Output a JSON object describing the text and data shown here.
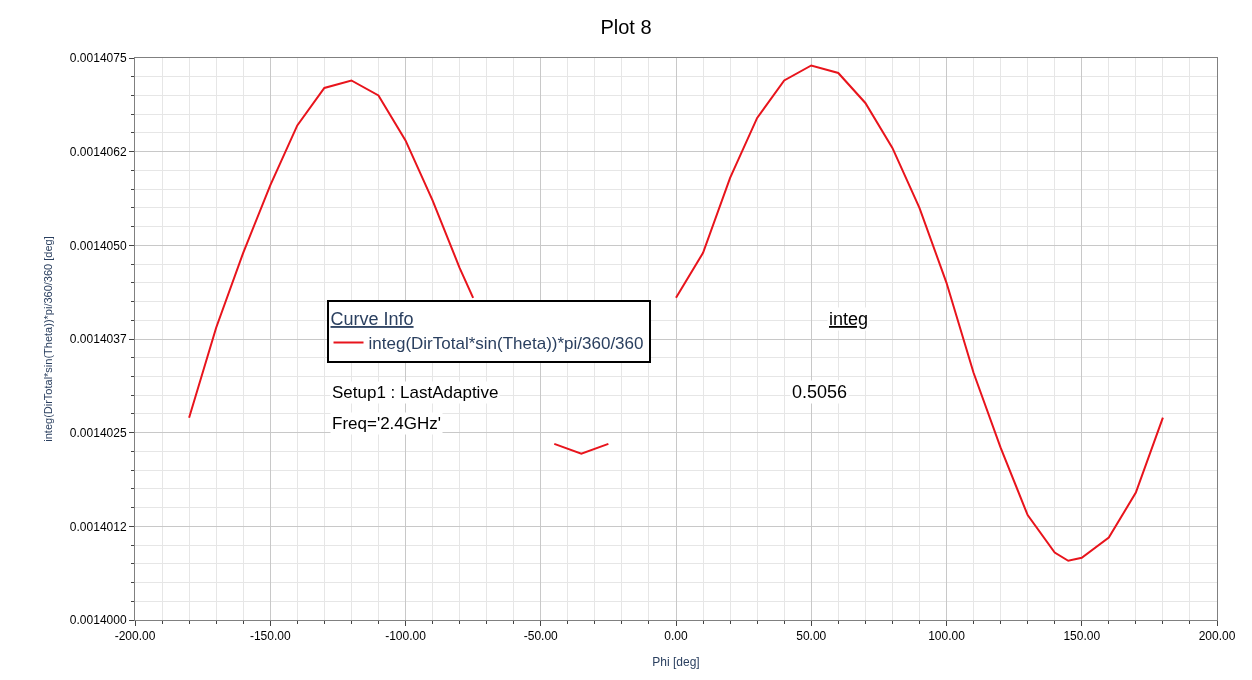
{
  "chart_data": {
    "type": "line",
    "title": "Plot 8",
    "xlabel": "Phi [deg]",
    "ylabel": "integ(DirTotal*sin(Theta))*pi/360/360 [deg]",
    "legend_title": "Curve Info",
    "x": [
      -180,
      -170,
      -160,
      -150,
      -140,
      -130,
      -120,
      -110,
      -100,
      -90,
      -80,
      -75,
      -70,
      -60,
      -50,
      -45,
      -35,
      -25,
      -20,
      -10,
      0,
      10,
      20,
      30,
      40,
      50,
      60,
      70,
      80,
      90,
      100,
      110,
      120,
      130,
      140,
      145,
      150,
      160,
      170,
      180
    ],
    "series": [
      {
        "name": "integ(DirTotal*sin(Theta))*pi/360/360",
        "color": "#e8141c",
        "values": [
          0.0014027,
          0.0014039,
          0.0014049,
          0.0014058,
          0.0014066,
          0.0014071,
          0.0014072,
          0.001407,
          0.0014064,
          0.0014056,
          0.0014047,
          0.0014043,
          null,
          null,
          null,
          0.00140235,
          0.00140222,
          0.00140235,
          null,
          null,
          0.0014043,
          0.0014049,
          0.0014059,
          0.0014067,
          0.0014072,
          0.0014074,
          0.0014073,
          0.0014069,
          0.0014063,
          0.0014055,
          0.0014045,
          0.0014033,
          0.0014023,
          0.0014014,
          0.0014009,
          0.00140079,
          0.00140083,
          0.0014011,
          0.0014017,
          0.0014027
        ]
      }
    ],
    "xlim": [
      -200,
      200
    ],
    "xticks": [
      {
        "value": -200,
        "label": "-200.00"
      },
      {
        "value": -150,
        "label": "-150.00"
      },
      {
        "value": -100,
        "label": "-100.00"
      },
      {
        "value": -50,
        "label": "-50.00"
      },
      {
        "value": 0,
        "label": "0.00"
      },
      {
        "value": 50,
        "label": "50.00"
      },
      {
        "value": 100,
        "label": "100.00"
      },
      {
        "value": 150,
        "label": "150.00"
      },
      {
        "value": 200,
        "label": "200.00"
      }
    ],
    "ylim": [
      0.0014,
      0.0014075
    ],
    "yticks": [
      {
        "value": 0.0014,
        "label": "0.0014000"
      },
      {
        "value": 0.00140125,
        "label": "0.0014012"
      },
      {
        "value": 0.0014025,
        "label": "0.0014025"
      },
      {
        "value": 0.00140375,
        "label": "0.0014037"
      },
      {
        "value": 0.001405,
        "label": "0.0014050"
      },
      {
        "value": 0.00140625,
        "label": "0.0014062"
      },
      {
        "value": 0.0014075,
        "label": "0.0014075"
      }
    ],
    "annotations": [
      "integ",
      "Setup1 : LastAdaptive",
      "0.5056",
      "Freq='2.4GHz'"
    ],
    "grid": true,
    "legend": "center",
    "marker": "none",
    "line_style": "solid"
  }
}
